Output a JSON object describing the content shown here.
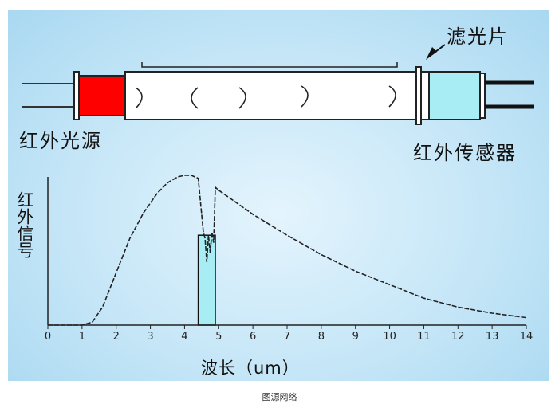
{
  "labels": {
    "light_source": "红外光源",
    "sensor": "红外传感器",
    "filter": "滤光片",
    "y_axis": "红外信号",
    "x_axis": "波长（um）"
  },
  "caption": "图源网络",
  "colors": {
    "background": "#bfe3f6",
    "light_source": "#ff0000",
    "sensor": "#a8ecf4",
    "filter_band": "#a8ecf4",
    "tube": "#ffffff"
  },
  "chart_data": {
    "type": "line",
    "xlabel": "波长（um）",
    "ylabel": "红外信号",
    "xlim": [
      0,
      14
    ],
    "ticks": [
      "0",
      "1",
      "2",
      "3",
      "4",
      "5",
      "6",
      "7",
      "8",
      "9",
      "10",
      "11",
      "12",
      "13",
      "14"
    ],
    "filter_band": [
      4.4,
      4.9
    ],
    "series": [
      {
        "x": [
          0,
          1,
          1.3,
          1.6,
          2,
          2.4,
          2.8,
          3.2,
          3.5,
          3.8,
          4.0,
          4.2,
          4.4,
          4.55,
          4.6,
          4.65,
          4.7,
          4.75,
          4.8,
          4.85,
          4.9,
          5.0,
          5.5,
          6,
          7,
          8,
          9,
          10,
          11,
          12,
          13,
          14
        ],
        "y": [
          0,
          0,
          0.02,
          0.12,
          0.35,
          0.58,
          0.75,
          0.88,
          0.95,
          0.99,
          1.0,
          1.0,
          0.98,
          0.62,
          0.58,
          0.42,
          0.6,
          0.48,
          0.62,
          0.55,
          0.92,
          0.9,
          0.82,
          0.74,
          0.6,
          0.47,
          0.36,
          0.27,
          0.18,
          0.12,
          0.08,
          0.05
        ]
      }
    ]
  }
}
